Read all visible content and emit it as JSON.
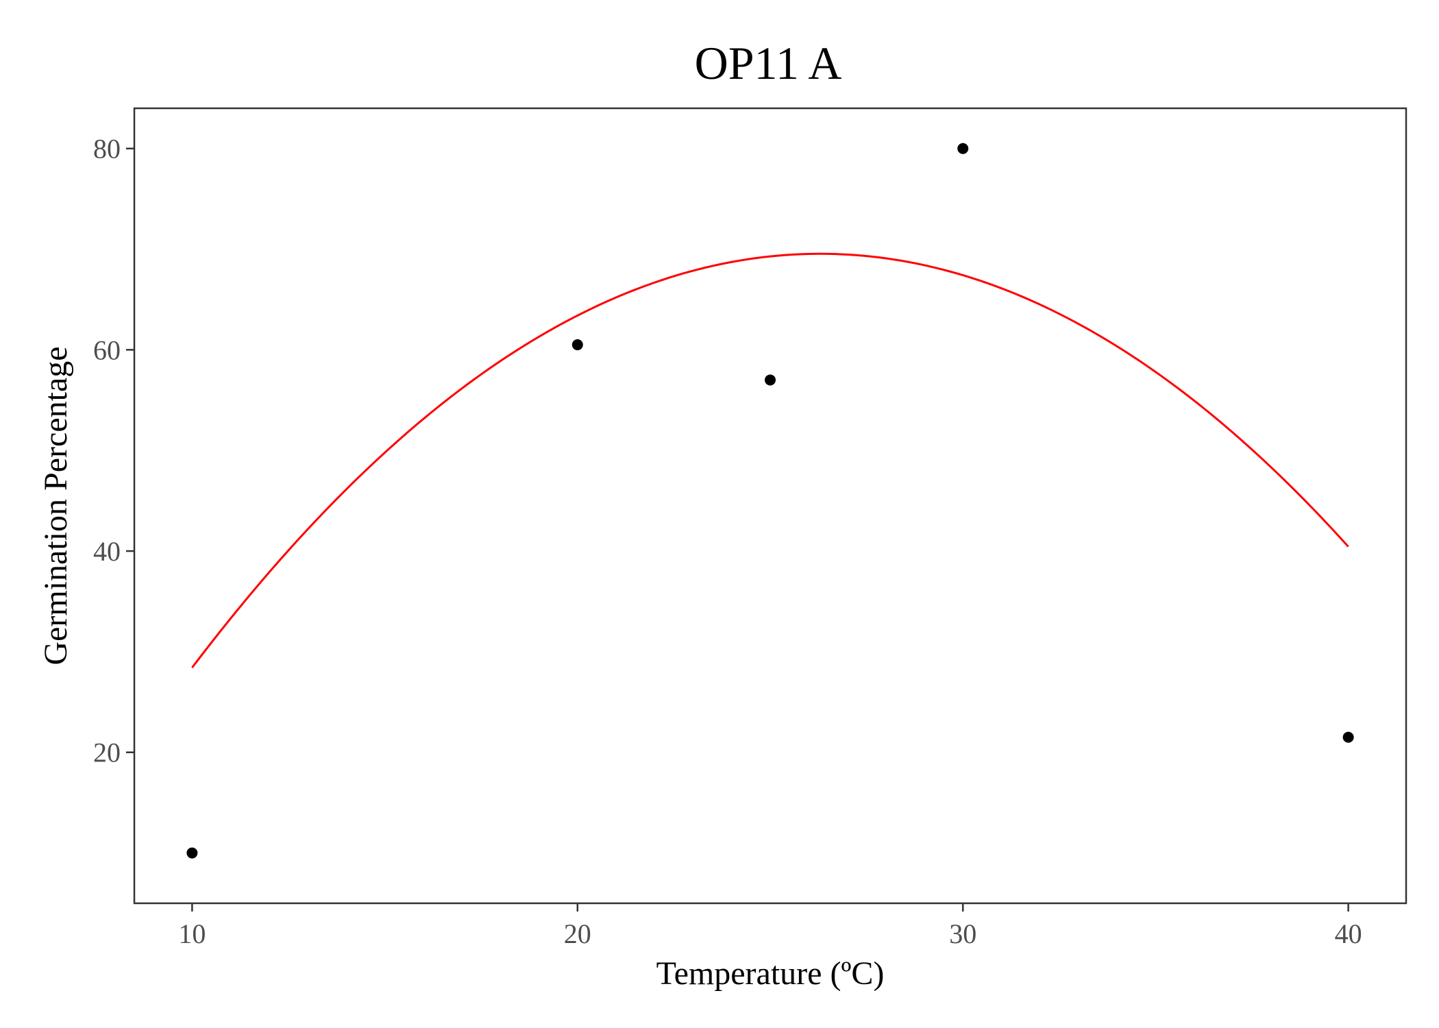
{
  "chart_data": {
    "type": "scatter",
    "title": "OP11 A",
    "xlabel": "Temperature (ºC)",
    "ylabel": "Germination Percentage",
    "xlim": [
      8.5,
      41.5
    ],
    "ylim": [
      5.0,
      84.0
    ],
    "x_ticks": [
      10,
      20,
      30,
      40
    ],
    "y_ticks": [
      20,
      40,
      60,
      80
    ],
    "points": [
      {
        "x": 10,
        "y": 10.0
      },
      {
        "x": 20,
        "y": 60.5
      },
      {
        "x": 25,
        "y": 57.0
      },
      {
        "x": 30,
        "y": 80.0
      },
      {
        "x": 40,
        "y": 21.5
      }
    ],
    "fit": {
      "type": "quadratic",
      "x_range": [
        10,
        40
      ],
      "coefficients": {
        "a": -0.1549,
        "b": 8.1458,
        "c": -37.55
      },
      "color": "#ff0000"
    },
    "point_color": "#000000",
    "grid": false,
    "legend": "none"
  }
}
